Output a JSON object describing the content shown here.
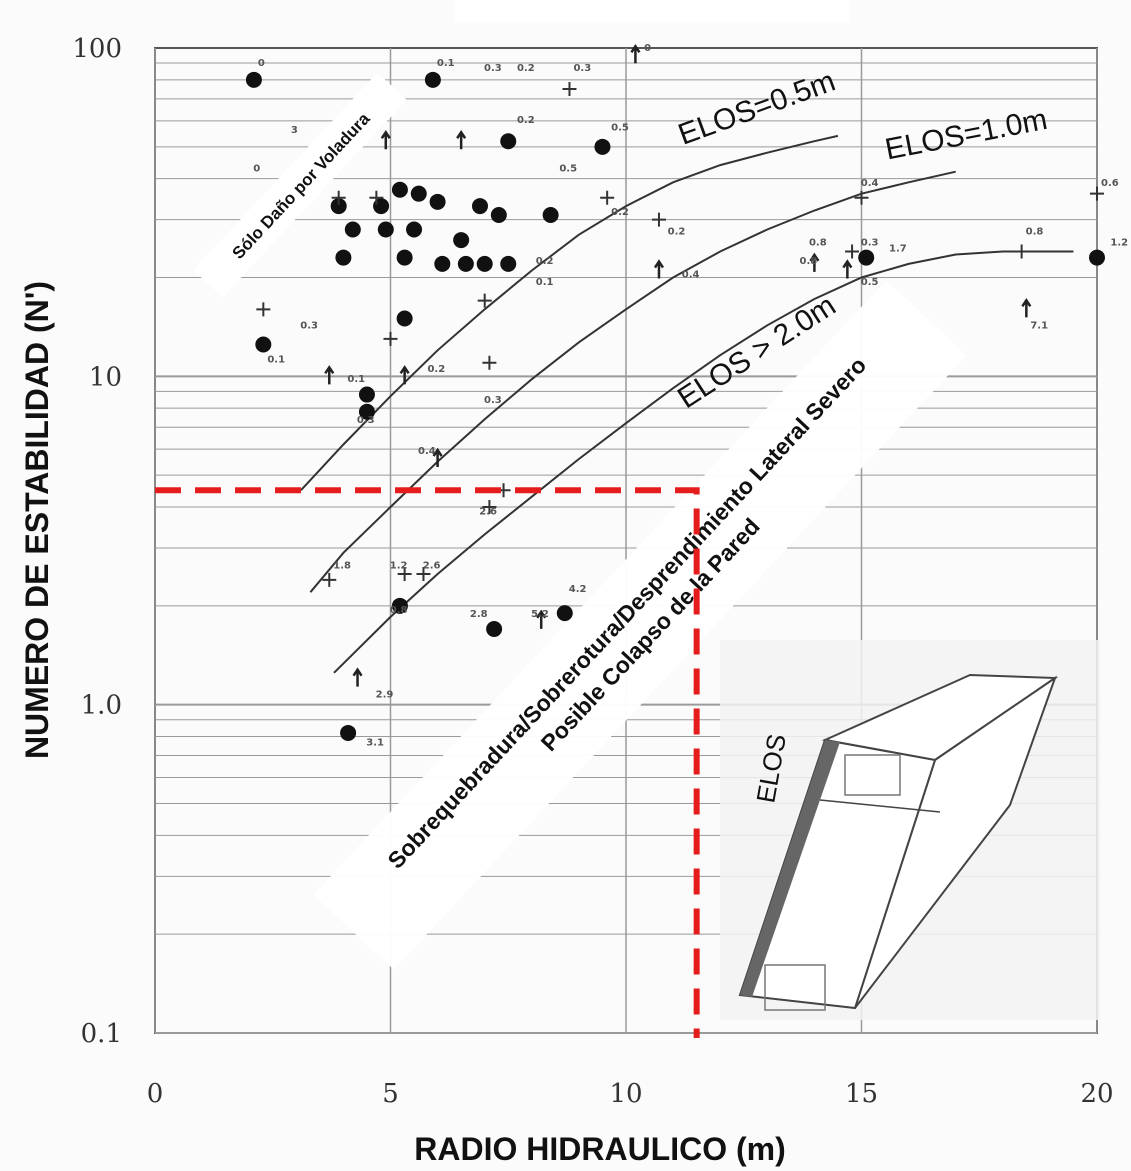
{
  "chart_data": {
    "type": "scatter",
    "title": "",
    "xlabel": "RADIO HIDRAULICO (m)",
    "ylabel": "NUMERO DE ESTABILIDAD (N')",
    "xlim": [
      0,
      20
    ],
    "ylim": [
      0.1,
      100
    ],
    "yscale": "log",
    "x_ticks": [
      "0",
      "5",
      "10",
      "15",
      "20"
    ],
    "y_ticks": [
      "0.1",
      "1.0",
      "10",
      "100"
    ],
    "grid": true,
    "series": [
      {
        "marker": "dot",
        "points": [
          {
            "x": 2.1,
            "y": 80
          },
          {
            "x": 5.9,
            "y": 80
          },
          {
            "x": 7.5,
            "y": 52
          },
          {
            "x": 9.5,
            "y": 50
          },
          {
            "x": 5.2,
            "y": 37
          },
          {
            "x": 5.6,
            "y": 36
          },
          {
            "x": 6.0,
            "y": 34
          },
          {
            "x": 6.9,
            "y": 33
          },
          {
            "x": 7.3,
            "y": 31
          },
          {
            "x": 8.4,
            "y": 31
          },
          {
            "x": 3.9,
            "y": 33
          },
          {
            "x": 4.8,
            "y": 33
          },
          {
            "x": 4.2,
            "y": 28
          },
          {
            "x": 4.9,
            "y": 28
          },
          {
            "x": 5.5,
            "y": 28
          },
          {
            "x": 6.5,
            "y": 26
          },
          {
            "x": 4.0,
            "y": 23
          },
          {
            "x": 5.3,
            "y": 23
          },
          {
            "x": 6.1,
            "y": 22
          },
          {
            "x": 6.6,
            "y": 22
          },
          {
            "x": 7.0,
            "y": 22
          },
          {
            "x": 7.5,
            "y": 22
          },
          {
            "x": 5.3,
            "y": 15
          },
          {
            "x": 2.3,
            "y": 12.5
          },
          {
            "x": 4.5,
            "y": 8.8
          },
          {
            "x": 4.5,
            "y": 7.8
          },
          {
            "x": 5.2,
            "y": 2.0
          },
          {
            "x": 7.2,
            "y": 1.7
          },
          {
            "x": 8.7,
            "y": 1.9
          },
          {
            "x": 4.1,
            "y": 0.82
          },
          {
            "x": 15.1,
            "y": 23
          },
          {
            "x": 20.0,
            "y": 23
          }
        ]
      },
      {
        "marker": "plus",
        "points": [
          {
            "x": 2.3,
            "y": 16
          },
          {
            "x": 3.9,
            "y": 35
          },
          {
            "x": 4.7,
            "y": 35
          },
          {
            "x": 9.6,
            "y": 35
          },
          {
            "x": 7.0,
            "y": 17
          },
          {
            "x": 7.1,
            "y": 11
          },
          {
            "x": 5.0,
            "y": 13
          },
          {
            "x": 7.4,
            "y": 4.5
          },
          {
            "x": 7.1,
            "y": 4.0
          },
          {
            "x": 3.7,
            "y": 2.4
          },
          {
            "x": 5.3,
            "y": 2.5
          },
          {
            "x": 5.7,
            "y": 2.5
          },
          {
            "x": 10.7,
            "y": 30
          },
          {
            "x": 15.0,
            "y": 35
          },
          {
            "x": 18.4,
            "y": 24
          },
          {
            "x": 20.0,
            "y": 36
          },
          {
            "x": 8.8,
            "y": 75
          },
          {
            "x": 14.8,
            "y": 24
          }
        ]
      },
      {
        "marker": "arrow",
        "points": [
          {
            "x": 10.2,
            "y": 95
          },
          {
            "x": 4.9,
            "y": 52
          },
          {
            "x": 6.5,
            "y": 52
          },
          {
            "x": 10.7,
            "y": 21
          },
          {
            "x": 14.0,
            "y": 22
          },
          {
            "x": 14.7,
            "y": 21
          },
          {
            "x": 18.5,
            "y": 16
          },
          {
            "x": 3.7,
            "y": 10
          },
          {
            "x": 5.3,
            "y": 10
          },
          {
            "x": 6.0,
            "y": 5.6
          },
          {
            "x": 8.2,
            "y": 1.8
          },
          {
            "x": 4.3,
            "y": 1.2
          }
        ]
      }
    ],
    "point_labels": [
      {
        "x": 2.1,
        "y": 88,
        "text": "0"
      },
      {
        "x": 5.9,
        "y": 88,
        "text": "0.1"
      },
      {
        "x": 6.9,
        "y": 85,
        "text": "0.3"
      },
      {
        "x": 7.6,
        "y": 85,
        "text": "0.2"
      },
      {
        "x": 8.8,
        "y": 85,
        "text": "0.3"
      },
      {
        "x": 7.6,
        "y": 59,
        "text": "0.2"
      },
      {
        "x": 9.6,
        "y": 56,
        "text": "0.5"
      },
      {
        "x": 2.8,
        "y": 55,
        "text": "3"
      },
      {
        "x": 2.0,
        "y": 42,
        "text": "0"
      },
      {
        "x": 8.5,
        "y": 42,
        "text": "0.5"
      },
      {
        "x": 9.6,
        "y": 31,
        "text": "0.2"
      },
      {
        "x": 10.8,
        "y": 27,
        "text": "0.2"
      },
      {
        "x": 11.1,
        "y": 20,
        "text": "0.4"
      },
      {
        "x": 8.0,
        "y": 22,
        "text": "0.2"
      },
      {
        "x": 8.0,
        "y": 19,
        "text": "0.1"
      },
      {
        "x": 3.0,
        "y": 14,
        "text": "0.3"
      },
      {
        "x": 2.3,
        "y": 11,
        "text": "0.1"
      },
      {
        "x": 4.0,
        "y": 9.6,
        "text": "0.1"
      },
      {
        "x": 5.7,
        "y": 10.3,
        "text": "0.2"
      },
      {
        "x": 6.9,
        "y": 8.3,
        "text": "0.3"
      },
      {
        "x": 4.2,
        "y": 7.2,
        "text": "0.3"
      },
      {
        "x": 5.5,
        "y": 5.8,
        "text": "0.4"
      },
      {
        "x": 6.8,
        "y": 3.8,
        "text": "2.6"
      },
      {
        "x": 3.7,
        "y": 2.6,
        "text": "1.8"
      },
      {
        "x": 4.9,
        "y": 2.6,
        "text": "1.2"
      },
      {
        "x": 5.6,
        "y": 2.6,
        "text": "2.6"
      },
      {
        "x": 4.9,
        "y": 1.9,
        "text": "0.8"
      },
      {
        "x": 6.6,
        "y": 1.85,
        "text": "2.8"
      },
      {
        "x": 7.9,
        "y": 1.85,
        "text": "5.2"
      },
      {
        "x": 8.7,
        "y": 2.2,
        "text": "4.2"
      },
      {
        "x": 4.6,
        "y": 1.05,
        "text": "2.9"
      },
      {
        "x": 4.4,
        "y": 0.75,
        "text": "3.1"
      },
      {
        "x": 14.9,
        "y": 38,
        "text": "0.4"
      },
      {
        "x": 13.8,
        "y": 25,
        "text": "0.8"
      },
      {
        "x": 14.9,
        "y": 25,
        "text": "0.3"
      },
      {
        "x": 15.5,
        "y": 24,
        "text": "1.7"
      },
      {
        "x": 13.6,
        "y": 22,
        "text": "0.8"
      },
      {
        "x": 14.9,
        "y": 19,
        "text": "0.5"
      },
      {
        "x": 20.0,
        "y": 38,
        "text": "0.6"
      },
      {
        "x": 18.4,
        "y": 27,
        "text": "0.8"
      },
      {
        "x": 20.2,
        "y": 25,
        "text": "1.2"
      },
      {
        "x": 18.5,
        "y": 14,
        "text": "7.1"
      },
      {
        "x": 10.3,
        "y": 98,
        "text": "0"
      }
    ],
    "curves": [
      {
        "name": "ELOS=0.5m",
        "points": [
          [
            3.1,
            4.5
          ],
          [
            4.0,
            6.2
          ],
          [
            5.0,
            8.7
          ],
          [
            6.0,
            12
          ],
          [
            7.0,
            16
          ],
          [
            8.0,
            21
          ],
          [
            9.0,
            27
          ],
          [
            10.0,
            33
          ],
          [
            11.0,
            39
          ],
          [
            12.0,
            44
          ],
          [
            13.0,
            48
          ],
          [
            14.0,
            52
          ],
          [
            14.5,
            54
          ]
        ]
      },
      {
        "name": "ELOS=1.0m",
        "points": [
          [
            3.3,
            2.2
          ],
          [
            4.0,
            2.9
          ],
          [
            5.0,
            4.0
          ],
          [
            6.0,
            5.5
          ],
          [
            7.0,
            7.4
          ],
          [
            8.0,
            9.8
          ],
          [
            9.0,
            12.7
          ],
          [
            10.0,
            16
          ],
          [
            11.0,
            20
          ],
          [
            12.0,
            24
          ],
          [
            13.0,
            28
          ],
          [
            14.0,
            32
          ],
          [
            15.0,
            36
          ],
          [
            16.0,
            39
          ],
          [
            17.0,
            42
          ]
        ]
      },
      {
        "name": "ELOS > 2.0m",
        "points": [
          [
            3.8,
            1.25
          ],
          [
            5.0,
            1.85
          ],
          [
            6.0,
            2.5
          ],
          [
            7.0,
            3.3
          ],
          [
            8.0,
            4.3
          ],
          [
            9.0,
            5.6
          ],
          [
            10.0,
            7.2
          ],
          [
            11.0,
            9.2
          ],
          [
            12.0,
            11.6
          ],
          [
            13.0,
            14.3
          ],
          [
            14.0,
            17.2
          ],
          [
            15.0,
            20
          ],
          [
            16.0,
            22
          ],
          [
            17.0,
            23.5
          ],
          [
            18.0,
            24
          ],
          [
            19.5,
            24
          ]
        ]
      }
    ],
    "annotations": {
      "blast_only": "Sólo Daño por Voladura",
      "severe_line1": "Sobrequebradura/Sobrerotura/Desprendimiento Lateral Severo",
      "severe_line2": "Posible Colapso de la Pared",
      "inset_label": "ELOS",
      "threshold_x": 11.5,
      "threshold_y": 4.5
    },
    "colors": {
      "threshold_line": "#e41c1c",
      "grid": "#9a9a9a",
      "points": "#111111"
    }
  }
}
